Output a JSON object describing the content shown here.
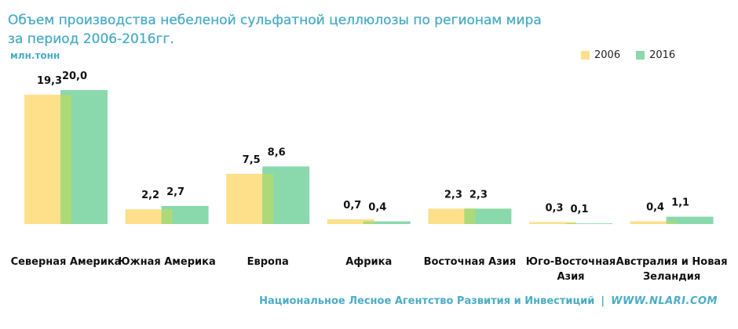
{
  "header": {
    "title_line1": "Объем производства небеленой сульфатной целлюлозы по регионам мира",
    "title_line2": "за период 2006-2016гг.",
    "unit": "млн.тонн"
  },
  "footer": {
    "org": "Национальное Лесное Агентство Развития и Инвестиций",
    "separator": "|",
    "site": "WWW.NLARI.COM"
  },
  "colors": {
    "s2006": "#ffe08a",
    "s2016": "#8ad9ad",
    "overlap": "#b3d96f"
  },
  "chart_data": {
    "type": "bar",
    "title": "Объем производства небеленой сульфатной целлюлозы по регионам мира за период 2006-2016гг.",
    "ylabel": "млн.тонн",
    "categories": [
      [
        "Северная Америка"
      ],
      [
        "Южная Америка"
      ],
      [
        "Европа"
      ],
      [
        "Африка"
      ],
      [
        "Восточная Азия"
      ],
      [
        "Юго-Восточная",
        "Азия"
      ],
      [
        "Австралия и Новая",
        "Зеландия"
      ]
    ],
    "series": [
      {
        "name": "2006",
        "values": [
          19.3,
          2.2,
          7.5,
          0.7,
          2.3,
          0.3,
          0.4
        ],
        "labels": [
          "19,3",
          "2,2",
          "7,5",
          "0,7",
          "2,3",
          "0,3",
          "0,4"
        ]
      },
      {
        "name": "2016",
        "values": [
          20.0,
          2.7,
          8.6,
          0.4,
          2.3,
          0.1,
          1.1
        ],
        "labels": [
          "20,0",
          "2,7",
          "8,6",
          "0,4",
          "2,3",
          "0,1",
          "1,1"
        ]
      }
    ],
    "ylim": [
      0,
      20
    ],
    "grid": false,
    "legend_position": "top-right"
  }
}
